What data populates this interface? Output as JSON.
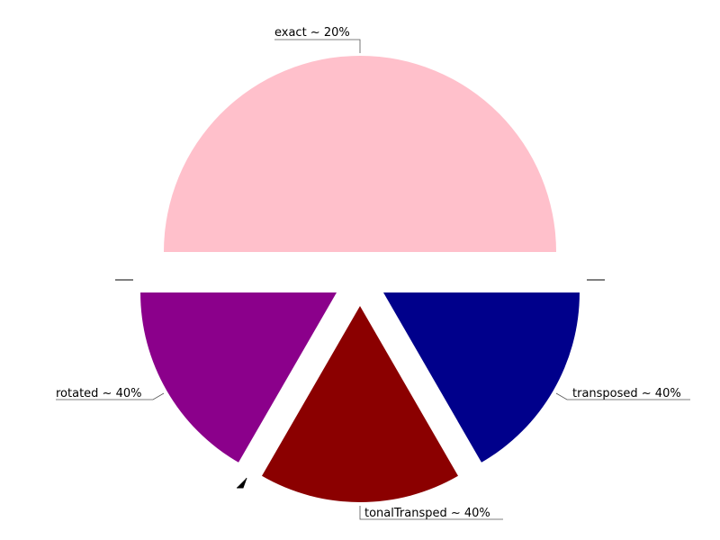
{
  "chart_data": {
    "type": "pie",
    "title": "",
    "slices": [
      {
        "label": "exact ~ 20%",
        "value": 50,
        "color": "#ffc0cb"
      },
      {
        "label": "rotated ~ 40%",
        "value": 16.667,
        "color": "#8b008b"
      },
      {
        "label": "tonalTransped ~ 40%",
        "value": 16.667,
        "color": "#8b0000"
      },
      {
        "label": "transposed ~ 40%",
        "value": 16.667,
        "color": "#00008b"
      },
      {
        "label": "",
        "value": 0,
        "color": "#000000"
      },
      {
        "label": "",
        "value": 0,
        "color": "#000000"
      },
      {
        "label": "",
        "value": 0,
        "color": "#000000"
      }
    ],
    "legend": "none",
    "grid": false
  }
}
